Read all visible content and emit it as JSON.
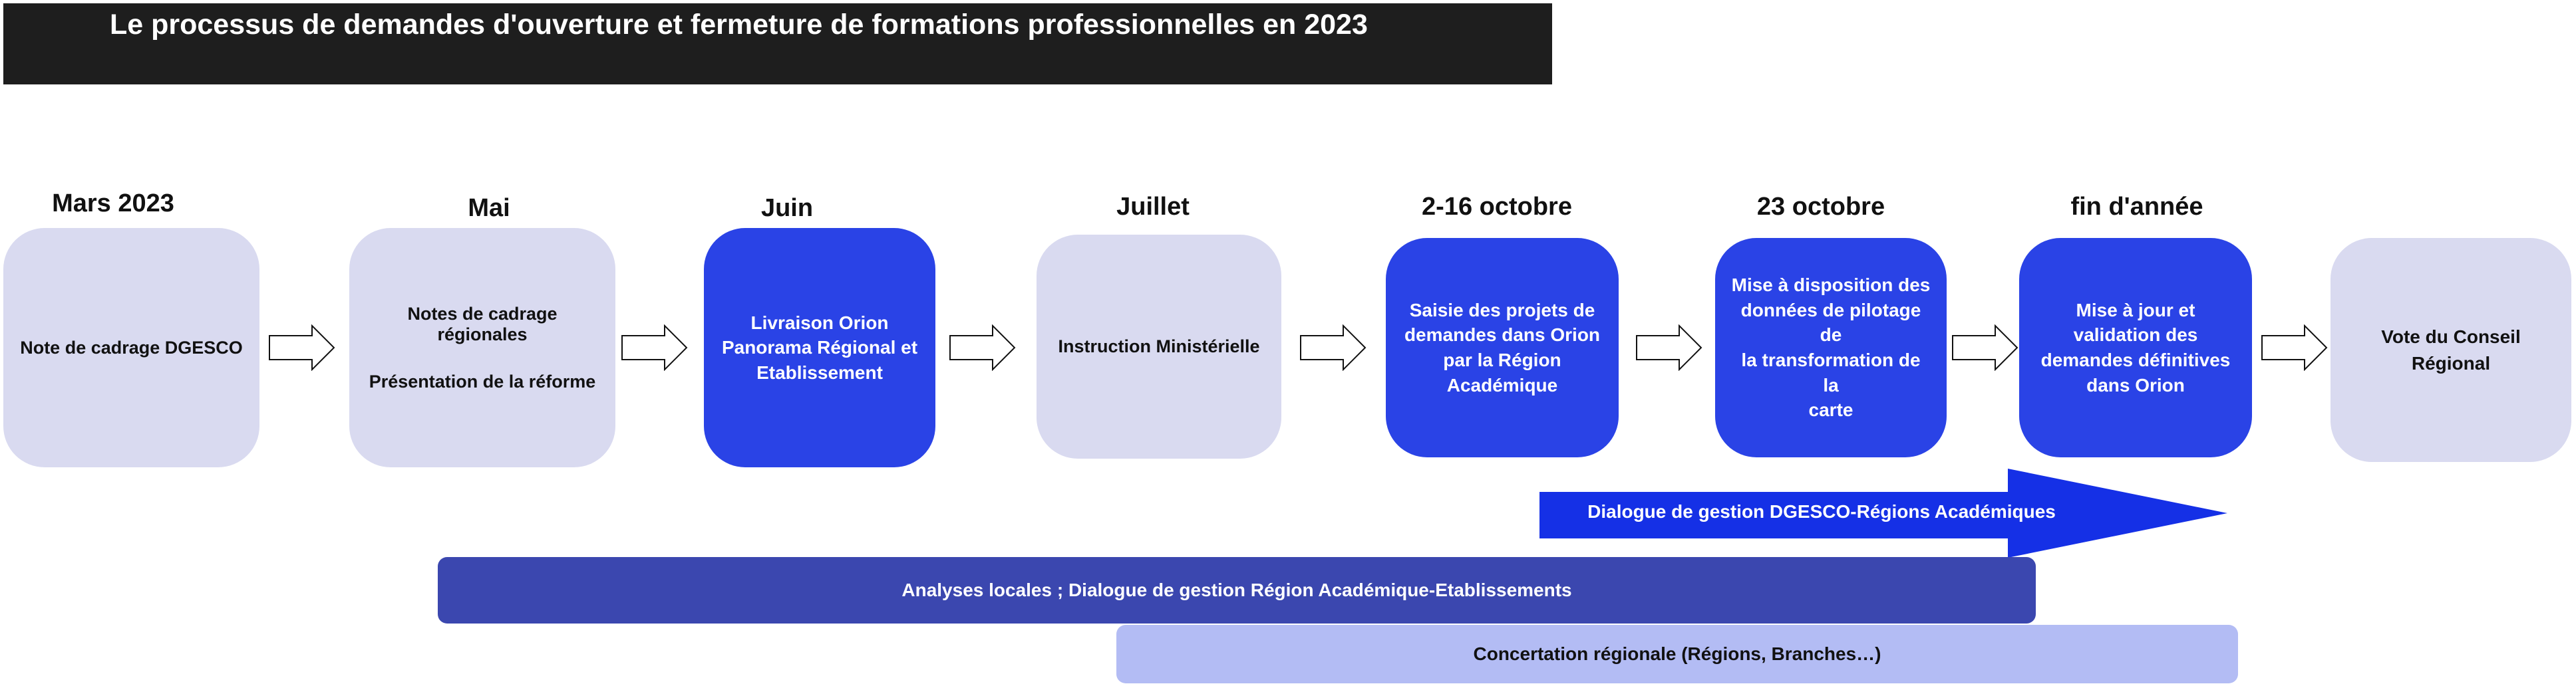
{
  "title": "Le  processus de demandes d'ouverture et fermeture de formations professionnelles en 2023",
  "steps": [
    {
      "date": "Mars 2023",
      "lines": [
        "Note de cadrage DGESCO"
      ],
      "style": "light"
    },
    {
      "date": "Mai",
      "lines": [
        "Notes de cadrage régionales",
        "Présentation de la réforme"
      ],
      "style": "light"
    },
    {
      "date": "Juin",
      "lines": [
        "Livraison Orion",
        "Panorama Régional et",
        "Etablissement"
      ],
      "style": "blue"
    },
    {
      "date": "Juillet",
      "lines": [
        "Instruction Ministérielle"
      ],
      "style": "light"
    },
    {
      "date": "2-16 octobre",
      "lines": [
        "Saisie des projets de",
        "demandes dans Orion",
        "par la Région",
        "Académique"
      ],
      "style": "blue"
    },
    {
      "date": "23 octobre",
      "lines": [
        "Mise à disposition des",
        "données de pilotage de",
        "la transformation de la",
        "carte"
      ],
      "style": "blue"
    },
    {
      "date": "fin d'année",
      "lines": [
        "Mise à jour et",
        "validation des",
        "demandes définitives",
        "dans Orion"
      ],
      "style": "blue"
    },
    {
      "date": "",
      "lines": [
        "Vote du Conseil",
        "Régional"
      ],
      "style": "light"
    }
  ],
  "dialogue_arrow": "Dialogue de gestion DGESCO-Régions Académiques",
  "bands": [
    {
      "label": "Analyses locales ; Dialogue de gestion Région Académique-Etablissements",
      "color": "#3b47af",
      "text_color": "#ffffff"
    },
    {
      "label": "Concertation régionale (Régions, Branches…)",
      "color": "#b3bcf4",
      "text_color": "#111111"
    }
  ],
  "colors": {
    "blue_box": "#2a43e6",
    "light_box": "#d9daf0",
    "title_bg": "#1e1e1e",
    "arrow_fill": "#1530e6"
  }
}
